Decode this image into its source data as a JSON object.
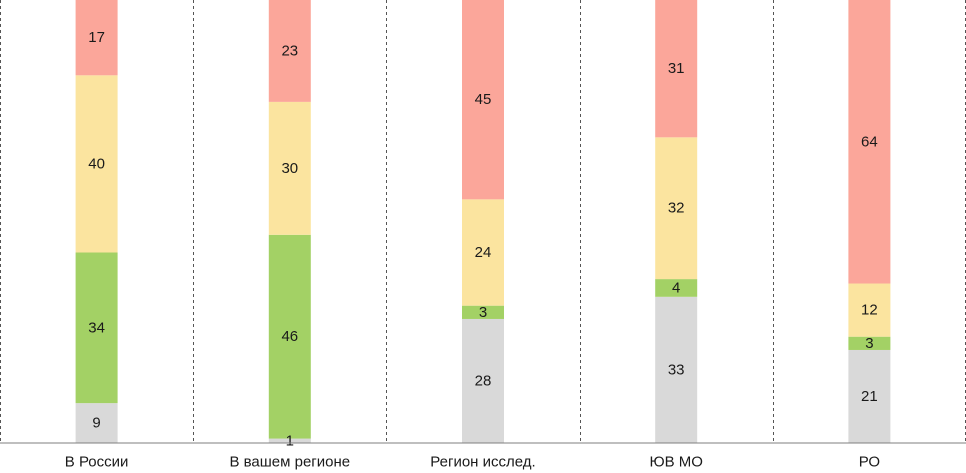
{
  "chart_data": {
    "type": "bar",
    "stacked": true,
    "categories": [
      "В России",
      "В вашем регионе",
      "Регион исслед.",
      "ЮВ МО",
      "РО"
    ],
    "series": [
      {
        "values": [
          9,
          1,
          28,
          33,
          21
        ],
        "color": "#d9d9d9"
      },
      {
        "values": [
          34,
          46,
          3,
          4,
          3
        ],
        "color": "#a3d165"
      },
      {
        "values": [
          40,
          30,
          24,
          32,
          12
        ],
        "color": "#fbe49f"
      },
      {
        "values": [
          17,
          23,
          45,
          31,
          64
        ],
        "color": "#fba69a"
      }
    ],
    "ylim": [
      0,
      100
    ],
    "grid": false,
    "legend": "none",
    "separators": "dashed vertical"
  }
}
